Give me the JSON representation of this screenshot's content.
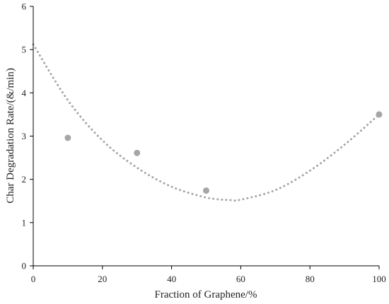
{
  "chart_data": {
    "type": "scatter",
    "title": "",
    "xlabel": "Fraction of Graphene/%",
    "ylabel": "Char Degradation Rate/(&/min)",
    "xlim": [
      0,
      100
    ],
    "ylim": [
      0,
      6
    ],
    "xticks": [
      0,
      20,
      40,
      60,
      80,
      100
    ],
    "yticks": [
      0,
      1,
      2,
      3,
      4,
      5,
      6
    ],
    "grid": false,
    "series": [
      {
        "x": [
          10,
          30,
          50,
          100
        ],
        "y": [
          2.96,
          2.61,
          1.74,
          3.5
        ],
        "color": "#a6a6a6"
      }
    ],
    "trendline": {
      "type": "polynomial",
      "style": "dotted",
      "color": "#a6a6a6",
      "x": [
        0,
        10,
        20,
        30,
        40,
        50,
        57,
        60,
        70,
        80,
        90,
        100
      ],
      "y": [
        5.12,
        3.83,
        2.9,
        2.27,
        1.83,
        1.58,
        1.52,
        1.53,
        1.75,
        2.2,
        2.8,
        3.5
      ]
    }
  }
}
